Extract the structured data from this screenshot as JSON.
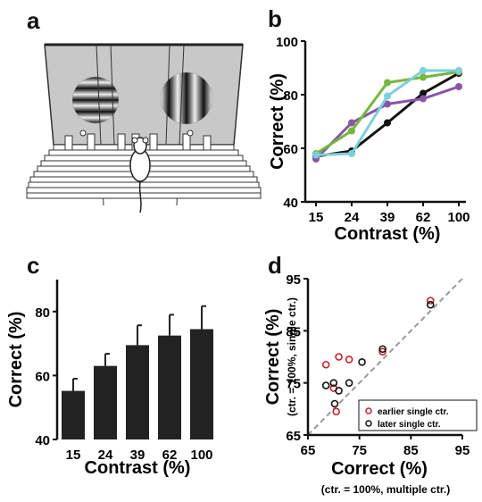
{
  "panels": {
    "a": "a",
    "b": "b",
    "c": "c",
    "d": "d"
  },
  "colors": {
    "black": "#111111",
    "purple": "#8b55a8",
    "green": "#74b83e",
    "cyan": "#7ecfdc",
    "bar": "#222222",
    "red": "#c8202a",
    "diag": "#999999",
    "screen": "#c8c8c8"
  },
  "chart_data": [
    {
      "id": "b",
      "type": "line",
      "categories": [
        "15",
        "24",
        "39",
        "62",
        "100"
      ],
      "xlabel": "Contrast (%)",
      "ylabel": "Correct (%)",
      "ylim": [
        40,
        100
      ],
      "yticks": [
        40,
        60,
        80,
        100
      ],
      "series": [
        {
          "color": "#111111",
          "values": [
            57,
            59,
            69.5,
            80.5,
            88
          ]
        },
        {
          "color": "#8b55a8",
          "values": [
            56,
            69.5,
            76.5,
            78.5,
            83
          ]
        },
        {
          "color": "#74b83e",
          "values": [
            58,
            66.5,
            84.5,
            86.5,
            88.5
          ]
        },
        {
          "color": "#7ecfdc",
          "values": [
            57.5,
            58,
            79.5,
            89,
            89
          ]
        }
      ]
    },
    {
      "id": "c",
      "type": "bar",
      "categories": [
        "15",
        "24",
        "39",
        "62",
        "100"
      ],
      "values": [
        55.2,
        63,
        69.5,
        72.5,
        74.5
      ],
      "errors": [
        3.8,
        3.8,
        6.2,
        6.5,
        7.2
      ],
      "xlabel": "Contrast (%)",
      "ylabel": "Correct (%)",
      "ylim": [
        40,
        90
      ],
      "yticks": [
        40,
        60,
        80
      ]
    },
    {
      "id": "d",
      "type": "scatter",
      "xlabel": "Correct (%)",
      "xlabel2": "(ctr. = 100%, multiple ctr.)",
      "ylabel": "Correct (%)",
      "ylabel2": "(ctr. = 100%, single ctr.)",
      "xlim": [
        65,
        95
      ],
      "ylim": [
        65,
        95
      ],
      "ticks": [
        65,
        75,
        85,
        95
      ],
      "legend": [
        "earlier single ctr.",
        "later single ctr."
      ],
      "series": [
        {
          "name": "earlier single ctr.",
          "color": "#c8202a",
          "points": [
            [
              68.5,
              78.5
            ],
            [
              70,
              74
            ],
            [
              70.5,
              69.5
            ],
            [
              71,
              80
            ],
            [
              73,
              79.5
            ],
            [
              79.5,
              81
            ],
            [
              88.8,
              90.8
            ]
          ]
        },
        {
          "name": "later single ctr.",
          "color": "#111111",
          "points": [
            [
              68.5,
              74.5
            ],
            [
              70,
              75
            ],
            [
              70.2,
              71
            ],
            [
              71,
              73.5
            ],
            [
              73,
              75
            ],
            [
              75.5,
              79
            ],
            [
              79.5,
              81.5
            ],
            [
              88.8,
              90
            ]
          ]
        }
      ]
    }
  ]
}
